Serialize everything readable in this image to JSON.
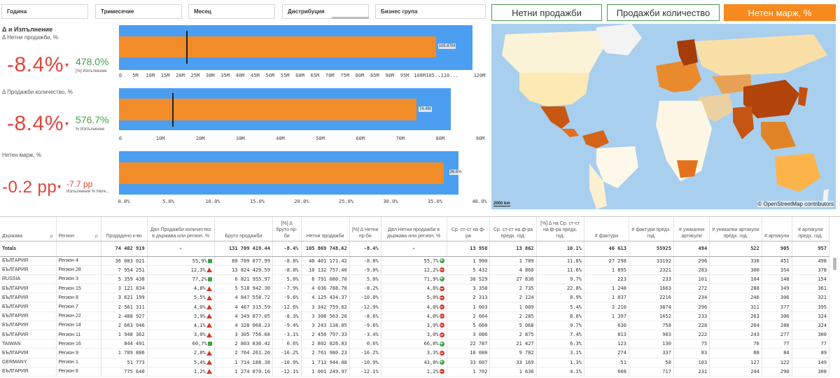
{
  "filters": [
    "Година",
    "Тримесечие",
    "Месец",
    "Дистрибуция",
    "Бизнес група"
  ],
  "measure_buttons": [
    {
      "label": "Нетни продажби",
      "active": false
    },
    {
      "label": "Продажби количество",
      "active": false
    },
    {
      "label": "Нетен марж, %",
      "active": true
    }
  ],
  "kpis": {
    "section_title": "Δ и Изпълнение",
    "net_sales": {
      "subtitle": "Δ Нетни продажби, %",
      "delta": "-8.4%",
      "achieve": "478.0%",
      "achieve_label": "[%] Изпълнение",
      "bar_label": "105.87M",
      "ticks": [
        "0",
        "5M",
        "10M",
        "15M",
        "20M",
        "25M",
        "30M",
        "35M",
        "40M",
        "45M",
        "50M",
        "55M",
        "60M",
        "65M",
        "70M",
        "75M",
        "80M",
        "85M",
        "90M",
        "95M",
        "100M",
        "105...",
        "110...",
        "120M"
      ],
      "value": 105.87,
      "max": 120,
      "target": 22
    },
    "qty": {
      "subtitle": "Δ Продажби количество, %",
      "delta": "-8.4%",
      "achieve": "576.7%",
      "achieve_label": "% Изпълнение",
      "bar_label": "74.4M",
      "ticks": [
        "0",
        "10M",
        "20M",
        "30M",
        "40M",
        "50M",
        "60M",
        "70M",
        "80M",
        "90M"
      ],
      "value": 74.4,
      "max": 90,
      "target": 12.9
    },
    "margin": {
      "subtitle": "Нетен марж, %",
      "delta": "-0.2 pp",
      "achieve": "-7.7 pp",
      "achieve_label": "Изпълнение % Нете...",
      "bar_label": "36.5%",
      "ticks": [
        "0.0%",
        "5.0%",
        "10.0%",
        "15.0%",
        "20.0%",
        "25.0%",
        "30.0%",
        "35.0%",
        "40.0%"
      ],
      "value": 36.5,
      "max": 40
    }
  },
  "map": {
    "scale": "2000 km",
    "attribution": "© OpenStreetMap contributors"
  },
  "table": {
    "headers": [
      "Държава",
      "Регион",
      "Продадено к-во",
      "Дял Продажби количество в държава или регион, %",
      "Бруто продажби",
      "[%] Δ бруто пр-би",
      "Нетни продажби",
      "[%] Δ Нетни пр-би",
      "Дял Нетни продажби в държава или регион, %",
      "Ср. ст-ст на ф-ра",
      "Ср. ст-ст на ф-ра предх. год.",
      "[%] Δ на Ср. ст-ст на ф-ра предх. год.",
      "# фактури",
      "# фактури предх. год.",
      "# уникални артикули",
      "# уникални артикули предх. год.",
      "# артикули",
      "# артикули предх. год."
    ],
    "totals": [
      "Totals",
      "",
      "74 402 919",
      "-",
      "131 709 419.44",
      "-8.4%",
      "105 869 748.62",
      "-8.4%",
      "-",
      "13 958",
      "13 862",
      "10.1%",
      "46 613",
      "55925",
      "494",
      "522",
      "905",
      "957"
    ],
    "rows": [
      [
        "БЪЛГАРИЯ",
        "Регион 4",
        "36 083 021",
        "55,9%",
        "flag",
        "80 709 077.99",
        "-8.8%",
        "40 401 171.42",
        "-8.8%",
        "55,7%",
        "plus",
        "1 990",
        "1 789",
        "11.6%",
        "27 298",
        "33192",
        "296",
        "338",
        "451",
        "498"
      ],
      [
        "БЪЛГАРИЯ",
        "Регион 28",
        "7 954 251",
        "12,3%",
        "warn",
        "13 824 429.59",
        "-8.8%",
        "10 132 757.40",
        "-9.0%",
        "12,2%",
        "minus",
        "5 432",
        "4 868",
        "11.6%",
        "1 895",
        "2321",
        "283",
        "300",
        "354",
        "378"
      ],
      [
        "RUSSIA",
        "Регион 3",
        "5 359 438",
        "77,2%",
        "flag",
        "6 821 955.97",
        "5.0%",
        "6 791 080.70",
        "5.0%",
        "71,9%",
        "plus",
        "30 529",
        "27 836",
        "9.7%",
        "223",
        "233",
        "101",
        "104",
        "148",
        "154"
      ],
      [
        "БЪЛГАРИЯ",
        "Регион 15",
        "3 121 834",
        "4,8%",
        "warn",
        "5 518 942.30",
        "-7.9%",
        "4 036 788.78",
        "-8.2%",
        "4,8%",
        "minus",
        "3 358",
        "2 735",
        "22.8%",
        "1 248",
        "1663",
        "272",
        "288",
        "349",
        "361"
      ],
      [
        "БЪЛГАРИЯ",
        "Регион 8",
        "3 621 199",
        "5,5%",
        "warn",
        "4 847 558.72",
        "-9.6%",
        "4 125 434.37",
        "-10.0%",
        "5,0%",
        "minus",
        "2 313",
        "2 124",
        "8.9%",
        "1 837",
        "2216",
        "234",
        "246",
        "306",
        "321"
      ],
      [
        "БЪЛГАРИЯ",
        "Регион 7",
        "2 561 311",
        "4,0%",
        "warn",
        "4 467 315.59",
        "-12.6%",
        "3 342 759.62",
        "-12.9%",
        "4,0%",
        "minus",
        "1 003",
        "1 009",
        "5.4%",
        "3 210",
        "3874",
        "296",
        "311",
        "377",
        "395"
      ],
      [
        "БЪЛГАРИЯ",
        "Регион 22",
        "2 488 927",
        "3,9%",
        "warn",
        "4 349 877.05",
        "-8.3%",
        "3 308 563.26",
        "-8.6%",
        "4,0%",
        "minus",
        "2 664",
        "2 285",
        "8.6%",
        "1 397",
        "1652",
        "233",
        "263",
        "306",
        "324"
      ],
      [
        "БЪЛГАРИЯ",
        "Регион 14",
        "2 663 946",
        "4,1%",
        "warn",
        "4 328 068.23",
        "-9.4%",
        "3 243 138.05",
        "-9.6%",
        "3,9%",
        "minus",
        "5 660",
        "5 068",
        "9.7%",
        "630",
        "758",
        "228",
        "264",
        "288",
        "324"
      ],
      [
        "БЪЛГАРИЯ",
        "Регион 11",
        "1 948 362",
        "3,0%",
        "warn",
        "3 305 756.68",
        "-3.1%",
        "2 456 797.33",
        "-3.4%",
        "3,0%",
        "minus",
        "3 086",
        "2 875",
        "7.4%",
        "813",
        "903",
        "222",
        "243",
        "277",
        "300"
      ],
      [
        "TAIWAN",
        "Регион 16",
        "844 491",
        "60,7%",
        "flag",
        "2 803 836.42",
        "0.6%",
        "2 802 826.83",
        "0.6%",
        "66,8%",
        "plus",
        "22 787",
        "21 427",
        "6.3%",
        "123",
        "130",
        "75",
        "76",
        "77",
        "77"
      ],
      [
        "БЪЛГАРИЯ",
        "Регион 9",
        "1 789 806",
        "2,8%",
        "warn",
        "2 764 261.26",
        "-16.2%",
        "2 761 980.23",
        "-16.2%",
        "3,3%",
        "minus",
        "10 080",
        "9 782",
        "3.1%",
        "274",
        "337",
        "83",
        "88",
        "84",
        "89"
      ],
      [
        "GERMANY",
        "Регион 1",
        "51 773",
        "5,4%",
        "warn",
        "1 714 188.38",
        "-10.9%",
        "1 713 944.88",
        "-10.9%",
        "43,8%",
        "plus",
        "33 607",
        "33 169",
        "1.3%",
        "51",
        "58",
        "103",
        "127",
        "122",
        "149"
      ],
      [
        "БЪЛГАРИЯ",
        "Регион 6",
        "775 640",
        "1,2%",
        "warn",
        "1 274 870.16",
        "-12.1%",
        "1 001 249.97",
        "-12.1%",
        "1,2%",
        "minus",
        "1 702",
        "1 636",
        "4.1%",
        "608",
        "717",
        "231",
        "244",
        "290",
        "308"
      ]
    ]
  }
}
